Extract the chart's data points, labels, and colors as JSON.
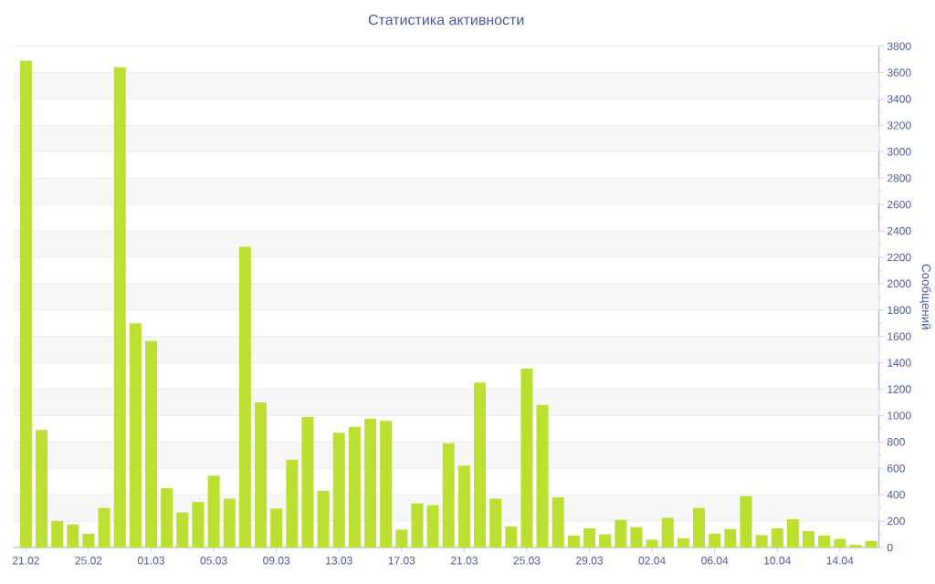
{
  "chart_data": {
    "type": "bar",
    "title": "Статистика активности",
    "ylabel": "Сообщений",
    "categories": [
      "21.02",
      null,
      null,
      null,
      "25.02",
      null,
      null,
      null,
      "01.03",
      null,
      null,
      null,
      "05.03",
      null,
      null,
      null,
      "09.03",
      null,
      null,
      null,
      "13.03",
      null,
      null,
      null,
      "17.03",
      null,
      null,
      null,
      "21.03",
      null,
      null,
      null,
      "25.03",
      null,
      null,
      null,
      "29.03",
      null,
      null,
      null,
      "02.04",
      null,
      null,
      null,
      "06.04",
      null,
      null,
      null,
      "10.04",
      null,
      null,
      null,
      "14.04",
      null,
      null
    ],
    "values": [
      3690,
      890,
      200,
      175,
      105,
      300,
      3640,
      1700,
      1565,
      450,
      265,
      345,
      545,
      370,
      2280,
      1100,
      295,
      665,
      990,
      430,
      870,
      915,
      975,
      960,
      135,
      335,
      320,
      790,
      620,
      1250,
      370,
      160,
      1355,
      1080,
      380,
      90,
      145,
      100,
      210,
      155,
      60,
      225,
      70,
      300,
      105,
      140,
      390,
      95,
      145,
      215,
      125,
      90,
      65,
      20,
      50
    ],
    "color": "#bce032",
    "ylim": [
      0,
      3800
    ],
    "yticks": [
      0,
      200,
      400,
      600,
      800,
      1000,
      1200,
      1400,
      1600,
      1800,
      2000,
      2200,
      2400,
      2600,
      2800,
      3000,
      3200,
      3400,
      3600,
      3800
    ],
    "grid": "y"
  }
}
